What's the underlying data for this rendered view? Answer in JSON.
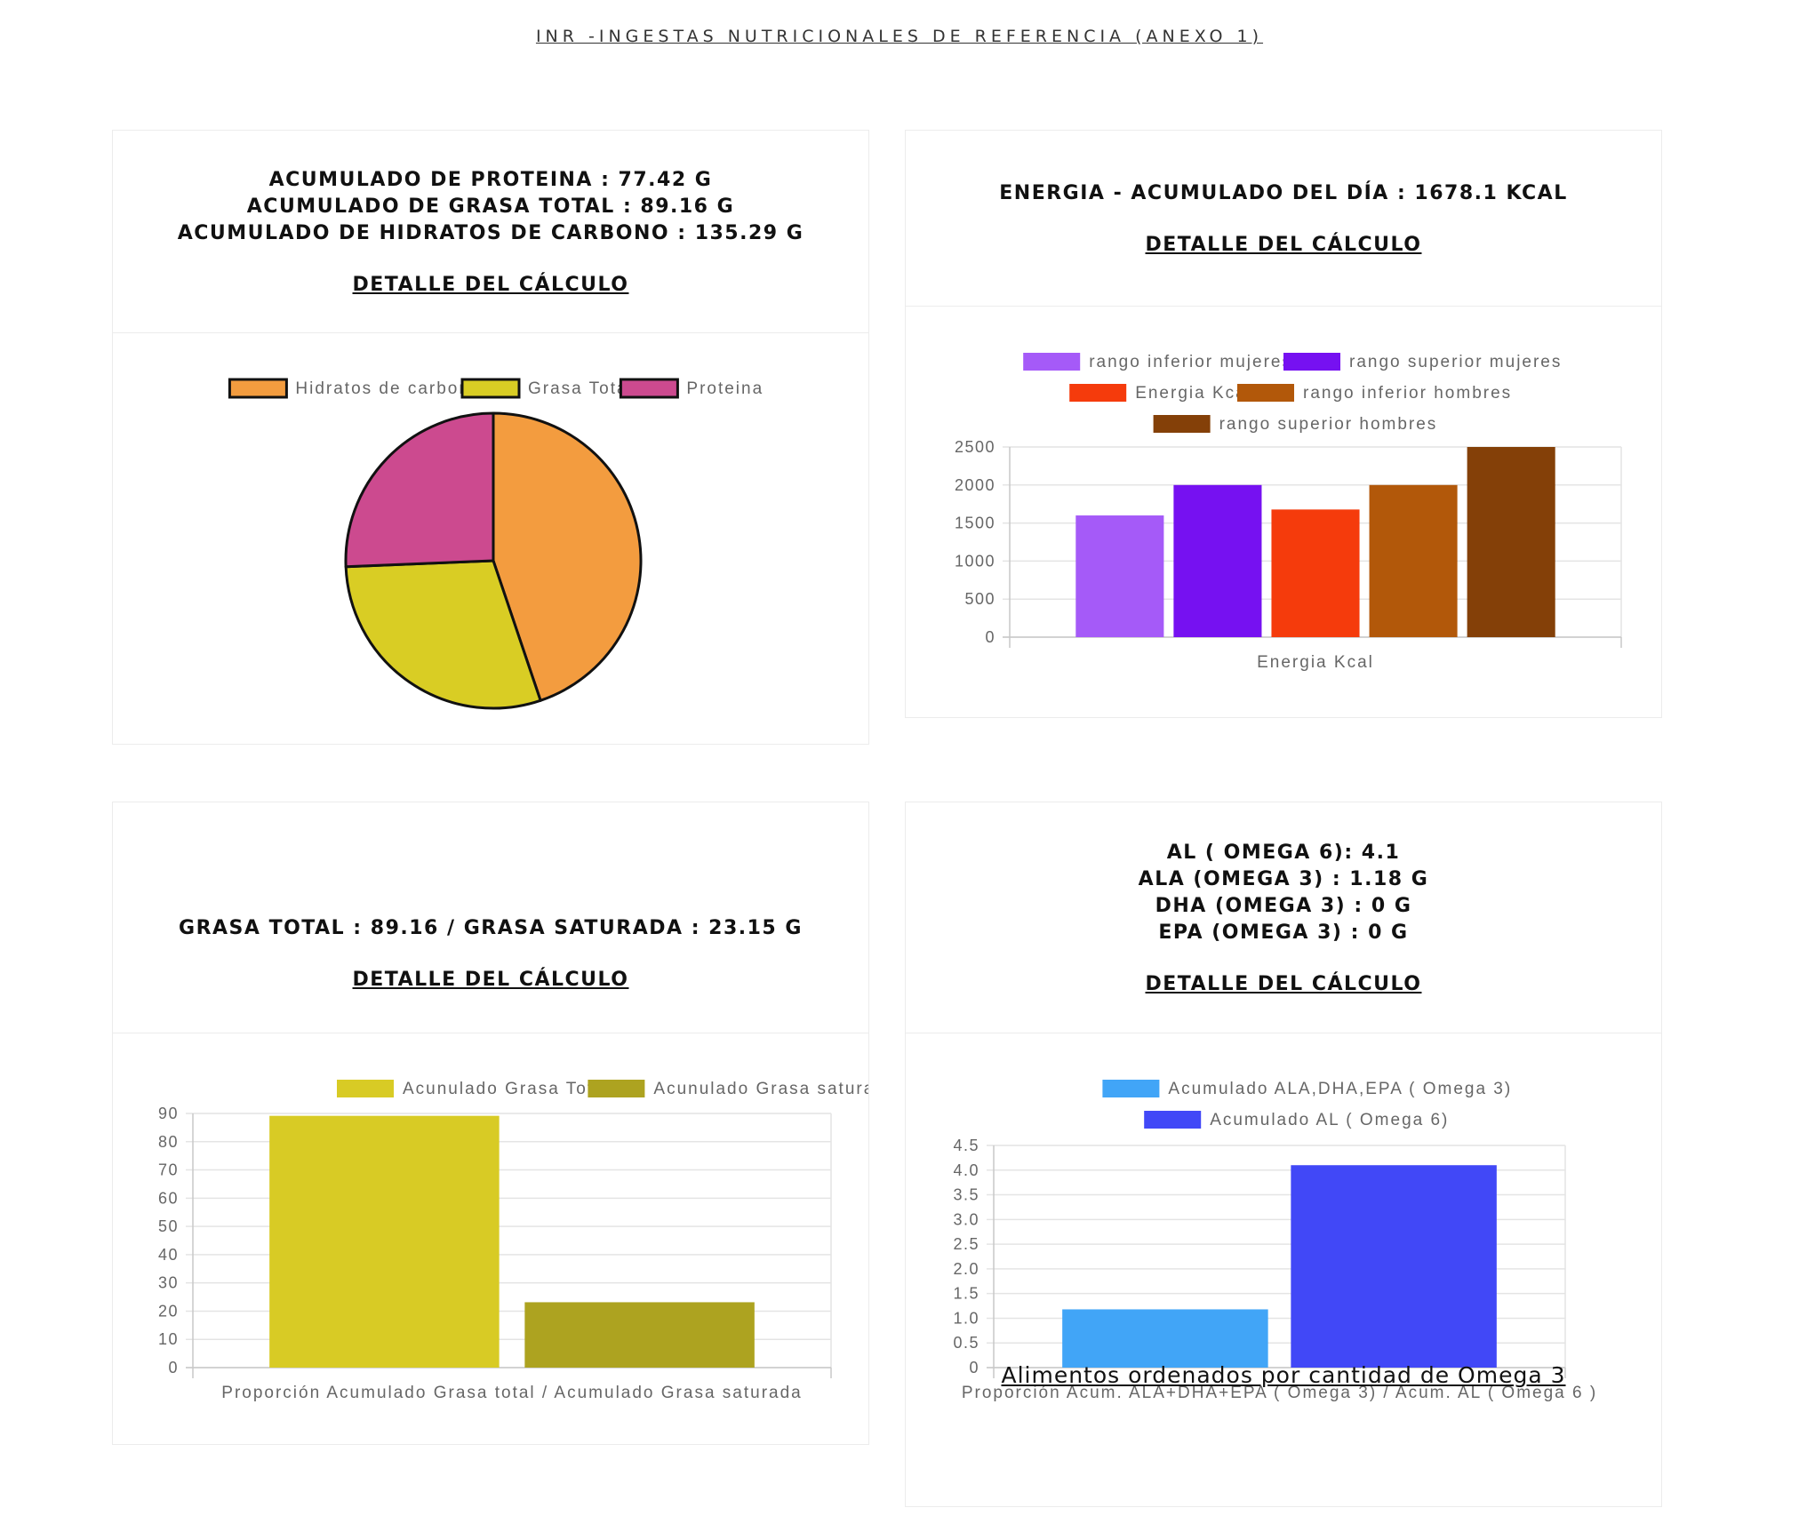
{
  "page": {
    "top_link": "INR -INGESTAS NUTRICIONALES DE REFERENCIA (ANEXO 1)",
    "bottom_link": "Alimentos ordenados por cantidad de Omega 3"
  },
  "cards": {
    "macros": {
      "lines": [
        "ACUMULADO DE PROTEINA : 77.42 G",
        "ACUMULADO DE GRASA TOTAL : 89.16 G",
        "ACUMULADO DE HIDRATOS DE CARBONO : 135.29 G"
      ],
      "detail": "DETALLE DEL CÁLCULO"
    },
    "energy": {
      "lines": [
        "ENERGIA - ACUMULADO DEL DÍA : 1678.1 KCAL"
      ],
      "detail": "DETALLE DEL CÁLCULO"
    },
    "fat": {
      "lines": [
        "GRASA TOTAL : 89.16 / GRASA SATURADA : 23.15 G"
      ],
      "detail": "DETALLE DEL CÁLCULO"
    },
    "omega": {
      "lines": [
        "AL ( OMEGA 6): 4.1",
        "ALA (OMEGA 3) : 1.18 G",
        "DHA (OMEGA 3) : 0 G",
        "EPA (OMEGA 3) : 0 G"
      ],
      "detail": "DETALLE DEL CÁLCULO"
    }
  },
  "chart_data": [
    {
      "type": "pie",
      "labels": [
        "Hidratos de carbono",
        "Grasa Total",
        "Proteina"
      ],
      "values": [
        135.29,
        89.16,
        77.42
      ],
      "colors": [
        "#f39c3f",
        "#d9cd24",
        "#cc4a8f"
      ],
      "legend": "top"
    },
    {
      "type": "bar",
      "categories": [
        "Energia Kcal"
      ],
      "series": [
        {
          "name": "rango inferior mujeres",
          "values": [
            1600
          ],
          "color": "#a55af8"
        },
        {
          "name": "rango superior mujeres",
          "values": [
            2000
          ],
          "color": "#7611f1"
        },
        {
          "name": "Energia Kcal",
          "values": [
            1678.1
          ],
          "color": "#f53b0c"
        },
        {
          "name": "rango inferior hombres",
          "values": [
            2000
          ],
          "color": "#b2580a"
        },
        {
          "name": "rango superior hombres",
          "values": [
            2500
          ],
          "color": "#844008"
        }
      ],
      "ylim": [
        0,
        2500
      ],
      "yticks": [
        "0",
        "500",
        "1000",
        "1500",
        "2000",
        "2500"
      ],
      "legend": "top",
      "grid": true
    },
    {
      "type": "bar",
      "categories": [
        "Proporción Acumulado Grasa total / Acumulado Grasa saturada"
      ],
      "series": [
        {
          "name": "Acunulado Grasa Total",
          "values": [
            89.16
          ],
          "color": "#d8cb25"
        },
        {
          "name": "Acunulado Grasa saturada",
          "values": [
            23.15
          ],
          "color": "#ada320"
        }
      ],
      "ylim": [
        0,
        90
      ],
      "yticks": [
        "0",
        "10",
        "20",
        "30",
        "40",
        "50",
        "60",
        "70",
        "80",
        "90"
      ],
      "legend": "top",
      "grid": true
    },
    {
      "type": "bar",
      "categories": [
        "Proporción Acum. ALA+DHA+EPA ( Omega 3) / Acum. AL ( Omega 6 )"
      ],
      "series": [
        {
          "name": "Acumulado  ALA,DHA,EPA ( Omega 3)",
          "values": [
            1.18
          ],
          "color": "#41a5f7"
        },
        {
          "name": "Acumulado  AL ( Omega 6)",
          "values": [
            4.1
          ],
          "color": "#4148f7"
        }
      ],
      "ylim": [
        0,
        4.5
      ],
      "yticks": [
        "0",
        "0.5",
        "1.0",
        "1.5",
        "2.0",
        "2.5",
        "3.0",
        "3.5",
        "4.0",
        "4.5"
      ],
      "legend": "top",
      "grid": true
    }
  ]
}
